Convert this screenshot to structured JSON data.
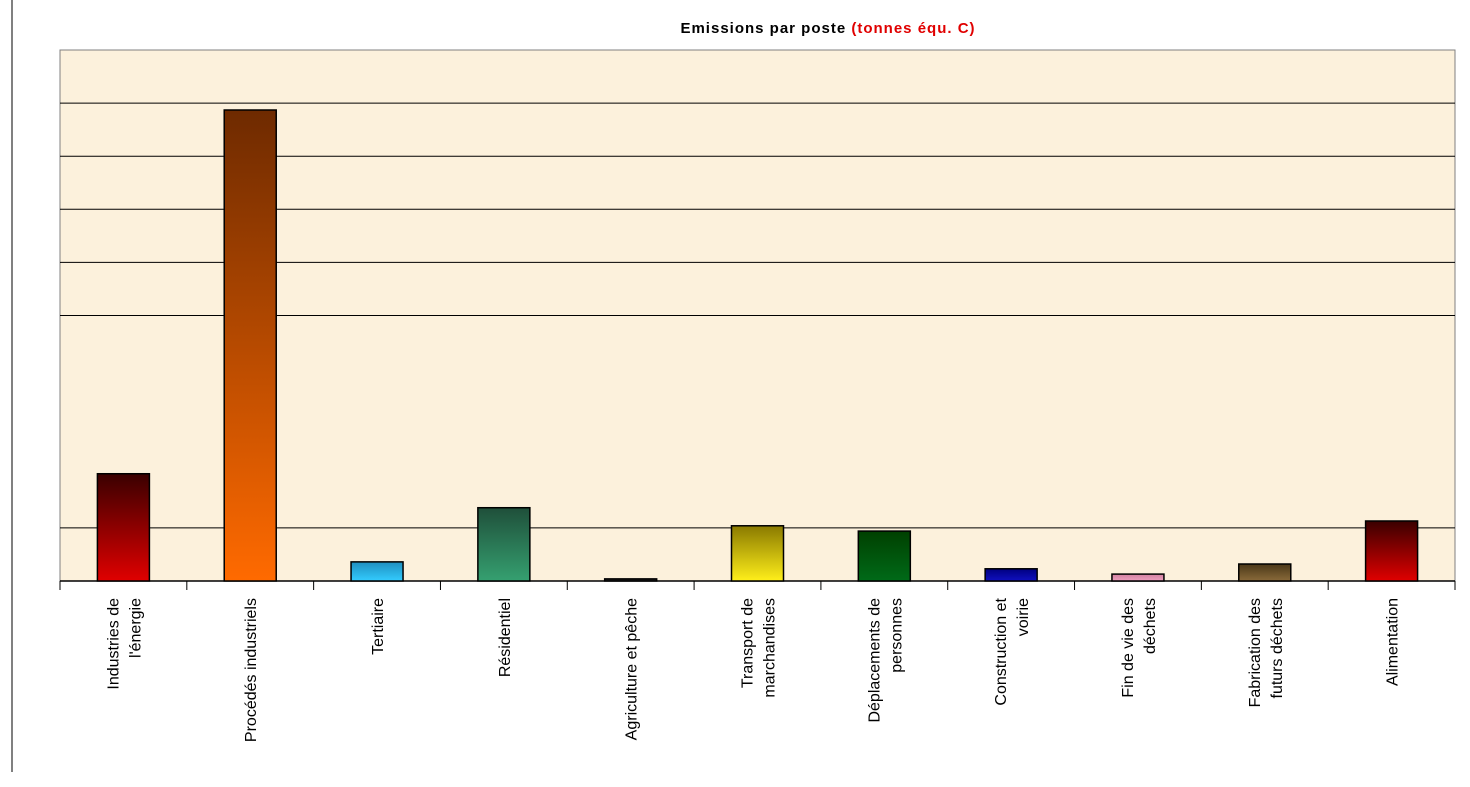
{
  "chart_data": {
    "type": "bar",
    "title": "Emissions par poste",
    "title_unit": "(tonnes équ. C)",
    "categories": [
      "Industries de\nl'énergie",
      "Procédés industriels",
      "Tertiaire",
      "Résidentiel",
      "Agriculture et pêche",
      "Transport de\nmarchandises",
      "Déplacements de\npersonnes",
      "Construction et\nvoirie",
      "Fin de vie des\ndéchets",
      "Fabrication des\nfuturs déchets",
      "Alimentation"
    ],
    "values": [
      2.02,
      8.87,
      0.36,
      1.38,
      0.04,
      1.04,
      0.94,
      0.23,
      0.13,
      0.32,
      1.13
    ],
    "colors": [
      [
        "#3a0000",
        "#e00000"
      ],
      [
        "#6e2a00",
        "#ff6a00"
      ],
      [
        "#1f8fbf",
        "#33ccff"
      ],
      [
        "#1f4f3a",
        "#35a070"
      ],
      [
        "#101010",
        "#303030"
      ],
      [
        "#8a7a00",
        "#ffef1a"
      ],
      [
        "#004000",
        "#006a18"
      ],
      [
        "#000080",
        "#1010c0"
      ],
      [
        "#d080a0",
        "#f0a0c0"
      ],
      [
        "#4a3818",
        "#8a6a3a"
      ],
      [
        "#3a0000",
        "#e00000"
      ]
    ],
    "ylim": [
      0,
      10
    ],
    "grid_lines": [
      1,
      5,
      6,
      7,
      8,
      9
    ],
    "background": "#fcf1dc"
  }
}
